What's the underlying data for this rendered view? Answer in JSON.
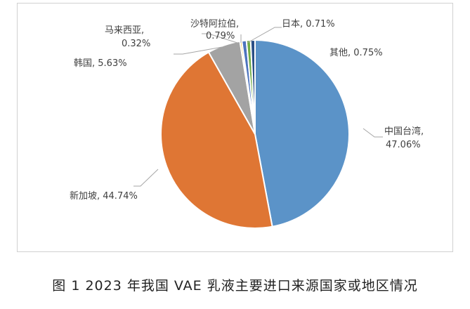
{
  "caption": "图 1 2023 年我国 VAE 乳液主要进口来源国家或地区情况",
  "chart_data": {
    "type": "pie",
    "title": "",
    "slices": [
      {
        "name": "中国台湾",
        "value": 47.06,
        "label": "中国台湾,",
        "pct": "47.06%",
        "color": "#5b93c8"
      },
      {
        "name": "新加坡",
        "value": 44.74,
        "label": "新加坡, 44.74%",
        "color": "#df7634"
      },
      {
        "name": "韩国",
        "value": 5.63,
        "label": "韩国, 5.63%",
        "color": "#a3a3a3"
      },
      {
        "name": "马来西亚",
        "value": 0.32,
        "label": "马来西亚,",
        "pct": "0.32%",
        "color": "#f2b517"
      },
      {
        "name": "沙特阿拉伯",
        "value": 0.79,
        "label": "沙特阿拉伯,",
        "pct": "0.79%",
        "color": "#4d74be"
      },
      {
        "name": "日本",
        "value": 0.71,
        "label": "日本, 0.71%",
        "color": "#72ad47"
      },
      {
        "name": "其他",
        "value": 0.75,
        "label": "其他, 0.75%",
        "color": "#2a4f86"
      }
    ],
    "start_angle": "12 o'clock",
    "direction": "clockwise",
    "legend": "none"
  }
}
